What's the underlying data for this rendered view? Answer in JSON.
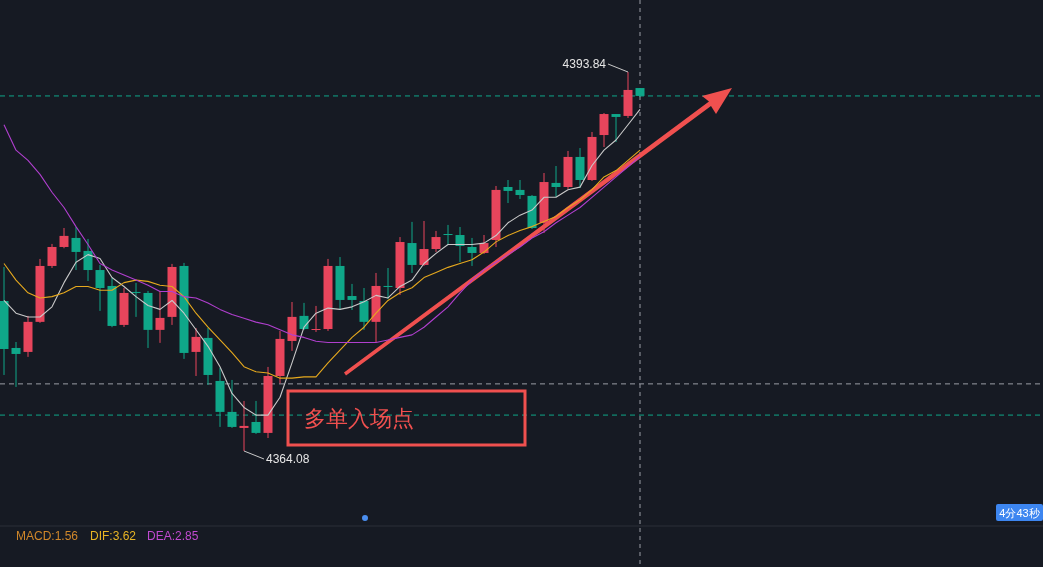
{
  "chart_data": {
    "type": "candlestick",
    "categories": [
      null,
      null,
      null,
      null,
      null,
      null,
      null,
      null,
      null,
      null,
      null,
      null,
      null,
      null,
      null,
      null,
      null,
      null,
      null,
      null,
      null,
      null,
      null,
      null,
      null,
      null,
      null,
      null,
      null,
      null,
      null,
      null,
      null,
      null,
      null,
      null,
      null,
      null,
      null,
      null,
      null,
      null,
      null,
      null,
      null,
      null,
      null,
      null,
      null,
      null,
      null,
      null,
      null,
      null
    ],
    "ohlc": [
      [
        4375.86,
        4378.53,
        4370.05,
        4372.09
      ],
      [
        4372.17,
        4372.64,
        4369.11,
        4371.7
      ],
      [
        4371.86,
        4374.69,
        4371.47,
        4374.22
      ],
      [
        4374.22,
        4379.16,
        4374.14,
        4378.61
      ],
      [
        4378.61,
        4380.34,
        4378.45,
        4380.1
      ],
      [
        4380.1,
        4381.59,
        4380.0,
        4380.97
      ],
      [
        4380.81,
        4381.67,
        4378.29,
        4379.71
      ],
      [
        4379.79,
        4380.73,
        4377.43,
        4378.29
      ],
      [
        4378.29,
        4378.69,
        4375.08,
        4376.88
      ],
      [
        4377.04,
        4377.67,
        4373.8,
        4373.9
      ],
      [
        4373.98,
        4376.88,
        4373.82,
        4376.49
      ],
      [
        4376.57,
        4377.28,
        4374.61,
        4376.49
      ],
      [
        4376.49,
        4376.65,
        4372.17,
        4373.59
      ],
      [
        4373.59,
        4376.65,
        4372.57,
        4374.53
      ],
      [
        4374.61,
        4378.77,
        4373.98,
        4378.53
      ],
      [
        4378.61,
        4378.85,
        4371.31,
        4371.78
      ],
      [
        4371.86,
        4373.74,
        4369.97,
        4373.04
      ],
      [
        4372.96,
        4373.74,
        4369.27,
        4370.05
      ],
      [
        4369.58,
        4370.6,
        4365.97,
        4367.15
      ],
      [
        4367.15,
        4369.66,
        4365.89,
        4365.97
      ],
      [
        4365.89,
        4368.01,
        4364.08,
        4366.05
      ],
      [
        4366.36,
        4368.01,
        4365.42,
        4365.5
      ],
      [
        4365.5,
        4370.68,
        4365.1,
        4369.97
      ],
      [
        4369.97,
        4373.51,
        4369.39,
        4372.88
      ],
      [
        4372.72,
        4375.78,
        4371.94,
        4374.61
      ],
      [
        4374.69,
        4375.71,
        4373.59,
        4373.66
      ],
      [
        4373.59,
        4375.47,
        4373.43,
        4373.66
      ],
      [
        4373.66,
        4379.16,
        4373.51,
        4378.61
      ],
      [
        4378.61,
        4379.31,
        4375.15,
        4375.94
      ],
      [
        4376.25,
        4377.2,
        4375.15,
        4375.94
      ],
      [
        4375.86,
        4376.88,
        4373.59,
        4374.22
      ],
      [
        4374.22,
        4378.06,
        4372.64,
        4377.04
      ],
      [
        4377.04,
        4378.45,
        4376.02,
        4376.96
      ],
      [
        4376.88,
        4380.88,
        4376.33,
        4380.49
      ],
      [
        4380.41,
        4382.07,
        4378.06,
        4378.69
      ],
      [
        4378.69,
        4382.14,
        4378.61,
        4379.94
      ],
      [
        4379.94,
        4381.36,
        4379.71,
        4380.88
      ],
      [
        4381.12,
        4381.83,
        4380.26,
        4381.04
      ],
      [
        4381.04,
        4381.67,
        4378.92,
        4380.18
      ],
      [
        4380.1,
        4380.81,
        4378.61,
        4379.63
      ],
      [
        4379.63,
        4381.04,
        4379.55,
        4380.41
      ],
      [
        4380.65,
        4384.89,
        4380.1,
        4384.58
      ],
      [
        4384.81,
        4385.36,
        4383.55,
        4384.5
      ],
      [
        4384.58,
        4385.36,
        4383.87,
        4384.18
      ],
      [
        4384.11,
        4384.18,
        4381.51,
        4381.59
      ],
      [
        4381.99,
        4385.91,
        4381.2,
        4385.2
      ],
      [
        4385.13,
        4386.46,
        4384.03,
        4384.81
      ],
      [
        4384.81,
        4387.64,
        4384.66,
        4387.17
      ],
      [
        4387.17,
        4387.87,
        4384.73,
        4385.36
      ],
      [
        4385.36,
        4389.13,
        4385.28,
        4388.74
      ],
      [
        4388.89,
        4390.62,
        4387.95,
        4390.54
      ],
      [
        4390.54,
        4390.54,
        4388.34,
        4390.31
      ],
      [
        4390.39,
        4393.84,
        4390.23,
        4392.43
      ],
      [
        4392.58,
        4392.58,
        4391.88,
        4391.96
      ]
    ],
    "colors": [
      "#0fa789",
      "#0fa789",
      "#e8455c",
      "#e8455c",
      "#e8455c",
      "#e8455c",
      "#0fa789",
      "#0fa789",
      "#0fa789",
      "#0fa789",
      "#e8455c",
      "#0fa789",
      "#0fa789",
      "#e8455c",
      "#e8455c",
      "#0fa789",
      "#e8455c",
      "#0fa789",
      "#0fa789",
      "#0fa789",
      "#e8455c",
      "#0fa789",
      "#e8455c",
      "#e8455c",
      "#e8455c",
      "#0fa789",
      "#e8455c",
      "#e8455c",
      "#0fa789",
      "#0fa789",
      "#0fa789",
      "#e8455c",
      "#0fa789",
      "#e8455c",
      "#0fa789",
      "#e8455c",
      "#e8455c",
      "#0fa789",
      "#0fa789",
      "#0fa789",
      "#e8455c",
      "#e8455c",
      "#0fa789",
      "#0fa789",
      "#0fa789",
      "#e8455c",
      "#0fa789",
      "#e8455c",
      "#0fa789",
      "#e8455c",
      "#e8455c",
      "#0fa789",
      "#e8455c",
      "#0fa789"
    ],
    "series": [
      {
        "type": "line",
        "color": "#c9c9c9",
        "values": [
          4375.9,
          4374.9,
          4374.6,
          4374.6,
          4375.4,
          4377.3,
          4378.9,
          4379.5,
          4379.2,
          4377.7,
          4377.0,
          4376.2,
          4375.5,
          4375.2,
          4375.9,
          4374.9,
          4373.6,
          4372.3,
          4370.7,
          4368.6,
          4367.5,
          4366.9,
          4366.9,
          4368.3,
          4371.0,
          4373.8,
          4374.9,
          4375.3,
          4375.2,
          4375.4,
          4375.8,
          4376.3,
          4376.1,
          4377.0,
          4377.5,
          4378.8,
          4379.6,
          4380.3,
          4380.3,
          4380.3,
          4380.4,
          4381.0,
          4382.0,
          4382.6,
          4383.0,
          4384.0,
          4384.0,
          4384.6,
          4384.8,
          4386.5,
          4387.7,
          4388.5,
          4389.7,
          4390.9
        ]
      },
      {
        "type": "line",
        "color": "#e6a91e",
        "values": [
          4378.8,
          4377.5,
          4376.5,
          4376.1,
          4376.2,
          4376.5,
          4377.0,
          4377.0,
          4376.7,
          4376.7,
          4377.3,
          4377.5,
          4377.4,
          4377.1,
          4377.0,
          4376.2,
          4374.9,
          4373.8,
          4372.8,
          4371.8,
          4370.7,
          4370.3,
          4370.2,
          4369.8,
          4369.8,
          4369.9,
          4369.9,
          4371.0,
          4372.0,
          4373.0,
          4373.8,
          4374.9,
          4375.9,
          4376.5,
          4376.9,
          4377.7,
          4378.1,
          4378.5,
          4378.8,
          4379.1,
          4379.7,
          4380.5,
          4381.0,
          4381.4,
          4381.7,
          4382.1,
          4382.5,
          4383.2,
          4383.8,
          4384.6,
          4385.6,
          4386.1,
          4386.9,
          4387.7
        ]
      },
      {
        "type": "line",
        "color": "#b03fce",
        "values": [
          4389.7,
          4387.7,
          4386.9,
          4385.8,
          4384.4,
          4383.2,
          4381.7,
          4380.3,
          4378.8,
          4378.3,
          4377.9,
          4377.5,
          4377.1,
          4376.6,
          4376.6,
          4376.2,
          4376.1,
          4375.7,
          4375.2,
          4374.8,
          4374.5,
          4374.2,
          4374.0,
          4373.6,
          4373.2,
          4373.0,
          4372.7,
          4372.6,
          4372.6,
          4372.6,
          4372.6,
          4372.6,
          4372.8,
          4373.0,
          4373.2,
          4373.8,
          4374.6,
          4375.4,
          4376.5,
          4377.5,
          4378.3,
          4378.9,
          4379.5,
          4380.1,
          4380.8,
          4381.3,
          4382.0,
          4382.6,
          4383.2,
          4384.0,
          4384.8,
          4385.6,
          4386.4,
          4387.2
        ]
      }
    ],
    "ref_lines": [
      {
        "axis": "y",
        "value": 4391.96,
        "color": "#0fa789",
        "line_style": "dashed"
      },
      {
        "axis": "y",
        "value": 4369.35,
        "color": "#9a9da6",
        "line_style": "dashed"
      },
      {
        "axis": "y",
        "value": 4366.9,
        "color": "#0fa789",
        "line_style": "dashed"
      }
    ],
    "annotations": [
      "多单入场点",
      "MACD:1.56",
      "DIF:3.62",
      "DEA:2.85",
      "4分43秒",
      "4393.84",
      "4364.08"
    ]
  }
}
